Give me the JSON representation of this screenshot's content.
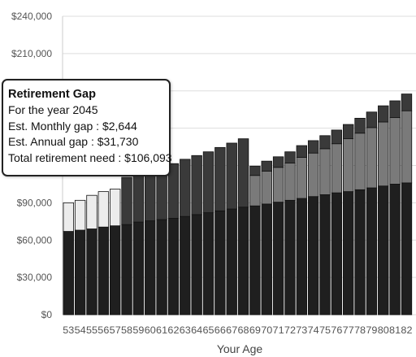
{
  "chart_data": {
    "type": "bar",
    "stacked": true,
    "xlabel": "Your Age",
    "ylabel": "",
    "ylim": [
      0,
      240000
    ],
    "y_tick_labels": [
      "$0",
      "$30,000",
      "$60,000",
      "$90,000",
      "$120,000",
      "$150,000",
      "$180,000",
      "$210,000",
      "$240,000"
    ],
    "y_tick_values": [
      0,
      30000,
      60000,
      90000,
      120000,
      150000,
      180000,
      210000,
      240000
    ],
    "grid": true,
    "legend": "none",
    "categories": [
      53,
      54,
      55,
      56,
      57,
      58,
      59,
      60,
      61,
      62,
      63,
      64,
      65,
      66,
      67,
      68,
      69,
      70,
      71,
      72,
      73,
      74,
      75,
      76,
      77,
      78,
      79,
      80,
      81,
      82
    ],
    "series": [
      {
        "color": "#1f1f1f",
        "values": [
          67000,
          68000,
          69000,
          70500,
          71500,
          72500,
          74500,
          75500,
          76500,
          77500,
          79000,
          80500,
          82000,
          83500,
          85000,
          86500,
          87500,
          89000,
          90500,
          92000,
          93500,
          95000,
          96500,
          98000,
          99000,
          100500,
          102000,
          103500,
          105000,
          106000
        ]
      },
      {
        "color": "#7a7a7a",
        "values": [
          0,
          0,
          0,
          0,
          0,
          0,
          0,
          0,
          0,
          0,
          0,
          0,
          0,
          0,
          0,
          0,
          24500,
          26500,
          28000,
          30000,
          33000,
          35000,
          37000,
          39500,
          42500,
          45500,
          48500,
          51500,
          53500,
          58000
        ]
      },
      {
        "color": "#3a3a3a",
        "values": [
          0,
          0,
          0,
          0,
          0,
          38000,
          39500,
          41500,
          43000,
          44000,
          46000,
          47500,
          49000,
          51000,
          53000,
          55000,
          7500,
          8000,
          8500,
          9000,
          9500,
          10000,
          10500,
          11000,
          11500,
          12000,
          12500,
          13000,
          13500,
          13500
        ]
      },
      {
        "color": "#ececec",
        "values": [
          23000,
          24000,
          27000,
          28500,
          29500,
          0,
          0,
          0,
          0,
          0,
          0,
          0,
          0,
          0,
          0,
          0,
          0,
          0,
          0,
          0,
          0,
          0,
          0,
          0,
          0,
          0,
          0,
          0,
          0,
          0
        ]
      }
    ]
  },
  "tooltip": {
    "title": "Retirement Gap",
    "year_line": "For the year 2045",
    "monthly_line": "Est. Monthly gap : $2,644",
    "annual_line": "Est. Annual gap : $31,730",
    "total_line": "Total retirement need : $106,093"
  }
}
